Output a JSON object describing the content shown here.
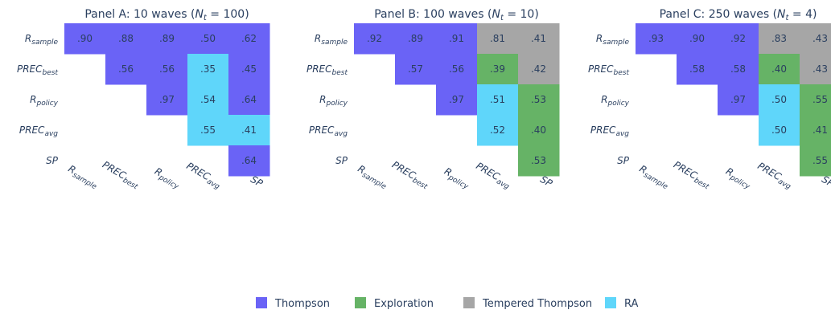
{
  "legend": [
    {
      "label": "Thompson",
      "color": "#6a63f6"
    },
    {
      "label": "Exploration",
      "color": "#66b366"
    },
    {
      "label": "Tempered Thompson",
      "color": "#a6a6a6"
    },
    {
      "label": "RA",
      "color": "#5fd6fa"
    }
  ],
  "chart_data": [
    {
      "type": "heatmap",
      "title": "Panel A: 10 waves (N_t = 100)",
      "title_text": "Panel A: 10 waves (",
      "title_math": "N",
      "title_sub": "t",
      "title_tail": " = 100)",
      "rows": [
        {
          "base": "R",
          "sub": "sample"
        },
        {
          "base": "PREC",
          "sub": "best"
        },
        {
          "base": "R",
          "sub": "policy"
        },
        {
          "base": "PREC",
          "sub": "avg"
        },
        {
          "base": "SP",
          "sub": ""
        }
      ],
      "cols": [
        {
          "base": "R",
          "sub": "sample"
        },
        {
          "base": "PREC",
          "sub": "best"
        },
        {
          "base": "R",
          "sub": "policy"
        },
        {
          "base": "PREC",
          "sub": "avg"
        },
        {
          "base": "SP",
          "sub": ""
        }
      ],
      "cells": [
        {
          "r": 0,
          "c": 0,
          "value": ".90",
          "category": "Thompson"
        },
        {
          "r": 0,
          "c": 1,
          "value": ".88",
          "category": "Thompson"
        },
        {
          "r": 0,
          "c": 2,
          "value": ".89",
          "category": "Thompson"
        },
        {
          "r": 0,
          "c": 3,
          "value": ".50",
          "category": "Thompson"
        },
        {
          "r": 0,
          "c": 4,
          "value": ".62",
          "category": "Thompson"
        },
        {
          "r": 1,
          "c": 1,
          "value": ".56",
          "category": "Thompson"
        },
        {
          "r": 1,
          "c": 2,
          "value": ".56",
          "category": "Thompson"
        },
        {
          "r": 1,
          "c": 3,
          "value": ".35",
          "category": "RA"
        },
        {
          "r": 1,
          "c": 4,
          "value": ".45",
          "category": "Thompson"
        },
        {
          "r": 2,
          "c": 2,
          "value": ".97",
          "category": "Thompson"
        },
        {
          "r": 2,
          "c": 3,
          "value": ".54",
          "category": "RA"
        },
        {
          "r": 2,
          "c": 4,
          "value": ".64",
          "category": "Thompson"
        },
        {
          "r": 3,
          "c": 3,
          "value": ".55",
          "category": "RA"
        },
        {
          "r": 3,
          "c": 4,
          "value": ".41",
          "category": "RA"
        },
        {
          "r": 4,
          "c": 4,
          "value": ".64",
          "category": "Thompson"
        }
      ]
    },
    {
      "type": "heatmap",
      "title": "Panel B: 100 waves (N_t = 10)",
      "title_text": "Panel B: 100 waves (",
      "title_math": "N",
      "title_sub": "t",
      "title_tail": " = 10)",
      "rows": [
        {
          "base": "R",
          "sub": "sample"
        },
        {
          "base": "PREC",
          "sub": "best"
        },
        {
          "base": "R",
          "sub": "policy"
        },
        {
          "base": "PREC",
          "sub": "avg"
        },
        {
          "base": "SP",
          "sub": ""
        }
      ],
      "cols": [
        {
          "base": "R",
          "sub": "sample"
        },
        {
          "base": "PREC",
          "sub": "best"
        },
        {
          "base": "R",
          "sub": "policy"
        },
        {
          "base": "PREC",
          "sub": "avg"
        },
        {
          "base": "SP",
          "sub": ""
        }
      ],
      "cells": [
        {
          "r": 0,
          "c": 0,
          "value": ".92",
          "category": "Thompson"
        },
        {
          "r": 0,
          "c": 1,
          "value": ".89",
          "category": "Thompson"
        },
        {
          "r": 0,
          "c": 2,
          "value": ".91",
          "category": "Thompson"
        },
        {
          "r": 0,
          "c": 3,
          "value": ".81",
          "category": "Tempered Thompson"
        },
        {
          "r": 0,
          "c": 4,
          "value": ".41",
          "category": "Tempered Thompson"
        },
        {
          "r": 1,
          "c": 1,
          "value": ".57",
          "category": "Thompson"
        },
        {
          "r": 1,
          "c": 2,
          "value": ".56",
          "category": "Thompson"
        },
        {
          "r": 1,
          "c": 3,
          "value": ".39",
          "category": "Exploration"
        },
        {
          "r": 1,
          "c": 4,
          "value": ".42",
          "category": "Tempered Thompson"
        },
        {
          "r": 2,
          "c": 2,
          "value": ".97",
          "category": "Thompson"
        },
        {
          "r": 2,
          "c": 3,
          "value": ".51",
          "category": "RA"
        },
        {
          "r": 2,
          "c": 4,
          "value": ".53",
          "category": "Exploration"
        },
        {
          "r": 3,
          "c": 3,
          "value": ".52",
          "category": "RA"
        },
        {
          "r": 3,
          "c": 4,
          "value": ".40",
          "category": "Exploration"
        },
        {
          "r": 4,
          "c": 4,
          "value": ".53",
          "category": "Exploration"
        }
      ]
    },
    {
      "type": "heatmap",
      "title": "Panel C: 250 waves (N_t = 4)",
      "title_text": "Panel C: 250 waves (",
      "title_math": "N",
      "title_sub": "t",
      "title_tail": " = 4)",
      "rows": [
        {
          "base": "R",
          "sub": "sample"
        },
        {
          "base": "PREC",
          "sub": "best"
        },
        {
          "base": "R",
          "sub": "policy"
        },
        {
          "base": "PREC",
          "sub": "avg"
        },
        {
          "base": "SP",
          "sub": ""
        }
      ],
      "cols": [
        {
          "base": "R",
          "sub": "sample"
        },
        {
          "base": "PREC",
          "sub": "best"
        },
        {
          "base": "R",
          "sub": "policy"
        },
        {
          "base": "PREC",
          "sub": "avg"
        },
        {
          "base": "SP",
          "sub": ""
        }
      ],
      "cells": [
        {
          "r": 0,
          "c": 0,
          "value": ".93",
          "category": "Thompson"
        },
        {
          "r": 0,
          "c": 1,
          "value": ".90",
          "category": "Thompson"
        },
        {
          "r": 0,
          "c": 2,
          "value": ".92",
          "category": "Thompson"
        },
        {
          "r": 0,
          "c": 3,
          "value": ".83",
          "category": "Tempered Thompson"
        },
        {
          "r": 0,
          "c": 4,
          "value": ".43",
          "category": "Tempered Thompson"
        },
        {
          "r": 1,
          "c": 1,
          "value": ".58",
          "category": "Thompson"
        },
        {
          "r": 1,
          "c": 2,
          "value": ".58",
          "category": "Thompson"
        },
        {
          "r": 1,
          "c": 3,
          "value": ".40",
          "category": "Exploration"
        },
        {
          "r": 1,
          "c": 4,
          "value": ".43",
          "category": "Tempered Thompson"
        },
        {
          "r": 2,
          "c": 2,
          "value": ".97",
          "category": "Thompson"
        },
        {
          "r": 2,
          "c": 3,
          "value": ".50",
          "category": "RA"
        },
        {
          "r": 2,
          "c": 4,
          "value": ".55",
          "category": "Exploration"
        },
        {
          "r": 3,
          "c": 3,
          "value": ".50",
          "category": "RA"
        },
        {
          "r": 3,
          "c": 4,
          "value": ".41",
          "category": "Exploration"
        },
        {
          "r": 4,
          "c": 4,
          "value": ".55",
          "category": "Exploration"
        }
      ]
    }
  ]
}
